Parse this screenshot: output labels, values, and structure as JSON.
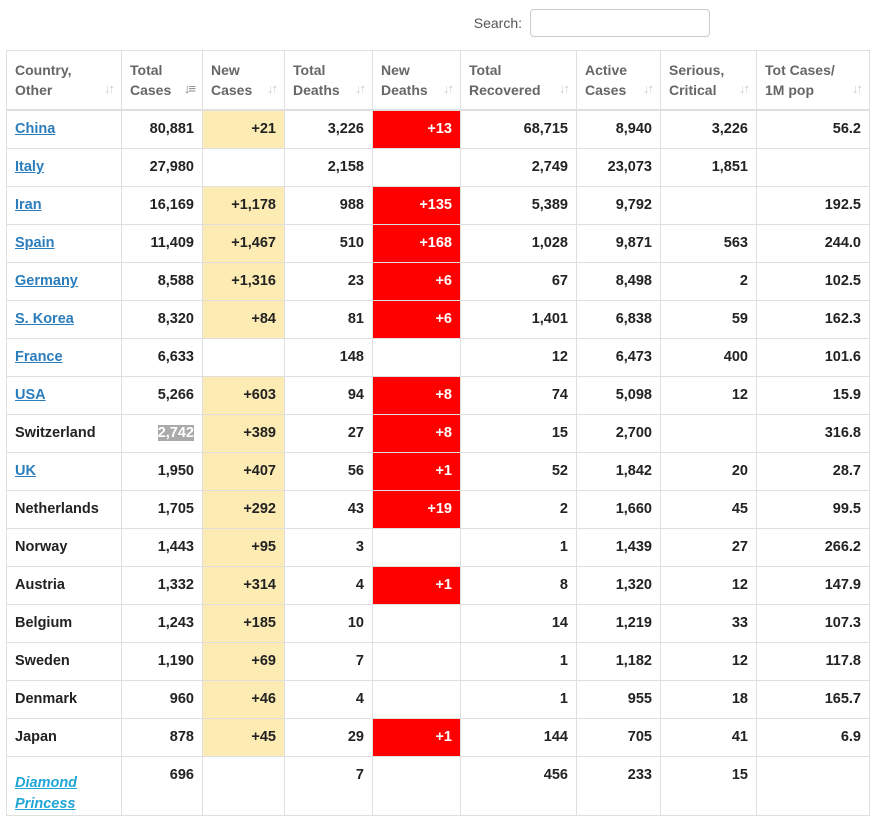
{
  "search": {
    "label": "Search:",
    "value": "",
    "placeholder": ""
  },
  "colors": {
    "new_cases_highlight": "#fcebb3",
    "new_deaths_highlight": "#ff0000",
    "link": "#2b7dbc",
    "ship_link": "#20a6d6"
  },
  "headers": [
    {
      "line1": "Country,",
      "line2": "Other",
      "sort": "sort-icon"
    },
    {
      "line1": "Total",
      "line2": "Cases",
      "sort": "sort-desc-icon"
    },
    {
      "line1": "New",
      "line2": "Cases",
      "sort": "sort-icon"
    },
    {
      "line1": "Total",
      "line2": "Deaths",
      "sort": "sort-icon"
    },
    {
      "line1": "New",
      "line2": "Deaths",
      "sort": "sort-icon"
    },
    {
      "line1": "Total",
      "line2": "Recovered",
      "sort": "sort-icon"
    },
    {
      "line1": "Active",
      "line2": "Cases",
      "sort": "sort-icon"
    },
    {
      "line1": "Serious,",
      "line2": "Critical",
      "sort": "sort-icon"
    },
    {
      "line1": "Tot Cases/",
      "line2": "1M pop",
      "sort": "sort-icon"
    }
  ],
  "rows": [
    {
      "country": "China",
      "link": true,
      "total_cases": "80,881",
      "new_cases": "+21",
      "total_deaths": "3,226",
      "new_deaths": "+13",
      "recovered": "68,715",
      "active": "8,940",
      "serious": "3,226",
      "per_million": "56.2"
    },
    {
      "country": "Italy",
      "link": true,
      "total_cases": "27,980",
      "new_cases": "",
      "total_deaths": "2,158",
      "new_deaths": "",
      "recovered": "2,749",
      "active": "23,073",
      "serious": "1,851",
      "per_million": ""
    },
    {
      "country": "Iran",
      "link": true,
      "total_cases": "16,169",
      "new_cases": "+1,178",
      "total_deaths": "988",
      "new_deaths": "+135",
      "recovered": "5,389",
      "active": "9,792",
      "serious": "",
      "per_million": "192.5"
    },
    {
      "country": "Spain",
      "link": true,
      "total_cases": "11,409",
      "new_cases": "+1,467",
      "total_deaths": "510",
      "new_deaths": "+168",
      "recovered": "1,028",
      "active": "9,871",
      "serious": "563",
      "per_million": "244.0"
    },
    {
      "country": "Germany",
      "link": true,
      "total_cases": "8,588",
      "new_cases": "+1,316",
      "total_deaths": "23",
      "new_deaths": "+6",
      "recovered": "67",
      "active": "8,498",
      "serious": "2",
      "per_million": "102.5"
    },
    {
      "country": "S. Korea",
      "link": true,
      "total_cases": "8,320",
      "new_cases": "+84",
      "total_deaths": "81",
      "new_deaths": "+6",
      "recovered": "1,401",
      "active": "6,838",
      "serious": "59",
      "per_million": "162.3"
    },
    {
      "country": "France",
      "link": true,
      "total_cases": "6,633",
      "new_cases": "",
      "total_deaths": "148",
      "new_deaths": "",
      "recovered": "12",
      "active": "6,473",
      "serious": "400",
      "per_million": "101.6"
    },
    {
      "country": "USA",
      "link": true,
      "total_cases": "5,266",
      "new_cases": "+603",
      "total_deaths": "94",
      "new_deaths": "+8",
      "recovered": "74",
      "active": "5,098",
      "serious": "12",
      "per_million": "15.9"
    },
    {
      "country": "Switzerland",
      "link": false,
      "total_cases": "2,742",
      "selected": true,
      "new_cases": "+389",
      "total_deaths": "27",
      "new_deaths": "+8",
      "recovered": "15",
      "active": "2,700",
      "serious": "",
      "per_million": "316.8"
    },
    {
      "country": "UK",
      "link": true,
      "total_cases": "1,950",
      "new_cases": "+407",
      "total_deaths": "56",
      "new_deaths": "+1",
      "recovered": "52",
      "active": "1,842",
      "serious": "20",
      "per_million": "28.7"
    },
    {
      "country": "Netherlands",
      "link": false,
      "total_cases": "1,705",
      "new_cases": "+292",
      "total_deaths": "43",
      "new_deaths": "+19",
      "recovered": "2",
      "active": "1,660",
      "serious": "45",
      "per_million": "99.5"
    },
    {
      "country": "Norway",
      "link": false,
      "total_cases": "1,443",
      "new_cases": "+95",
      "total_deaths": "3",
      "new_deaths": "",
      "recovered": "1",
      "active": "1,439",
      "serious": "27",
      "per_million": "266.2"
    },
    {
      "country": "Austria",
      "link": false,
      "total_cases": "1,332",
      "new_cases": "+314",
      "total_deaths": "4",
      "new_deaths": "+1",
      "recovered": "8",
      "active": "1,320",
      "serious": "12",
      "per_million": "147.9"
    },
    {
      "country": "Belgium",
      "link": false,
      "total_cases": "1,243",
      "new_cases": "+185",
      "total_deaths": "10",
      "new_deaths": "",
      "recovered": "14",
      "active": "1,219",
      "serious": "33",
      "per_million": "107.3"
    },
    {
      "country": "Sweden",
      "link": false,
      "total_cases": "1,190",
      "new_cases": "+69",
      "total_deaths": "7",
      "new_deaths": "",
      "recovered": "1",
      "active": "1,182",
      "serious": "12",
      "per_million": "117.8"
    },
    {
      "country": "Denmark",
      "link": false,
      "total_cases": "960",
      "new_cases": "+46",
      "total_deaths": "4",
      "new_deaths": "",
      "recovered": "1",
      "active": "955",
      "serious": "18",
      "per_million": "165.7"
    },
    {
      "country": "Japan",
      "link": false,
      "total_cases": "878",
      "new_cases": "+45",
      "total_deaths": "29",
      "new_deaths": "+1",
      "recovered": "144",
      "active": "705",
      "serious": "41",
      "per_million": "6.9"
    },
    {
      "country": "Diamond Princess",
      "link": true,
      "ship": true,
      "total_cases": "696",
      "new_cases": "",
      "total_deaths": "7",
      "new_deaths": "",
      "recovered": "456",
      "active": "233",
      "serious": "15",
      "per_million": ""
    }
  ]
}
